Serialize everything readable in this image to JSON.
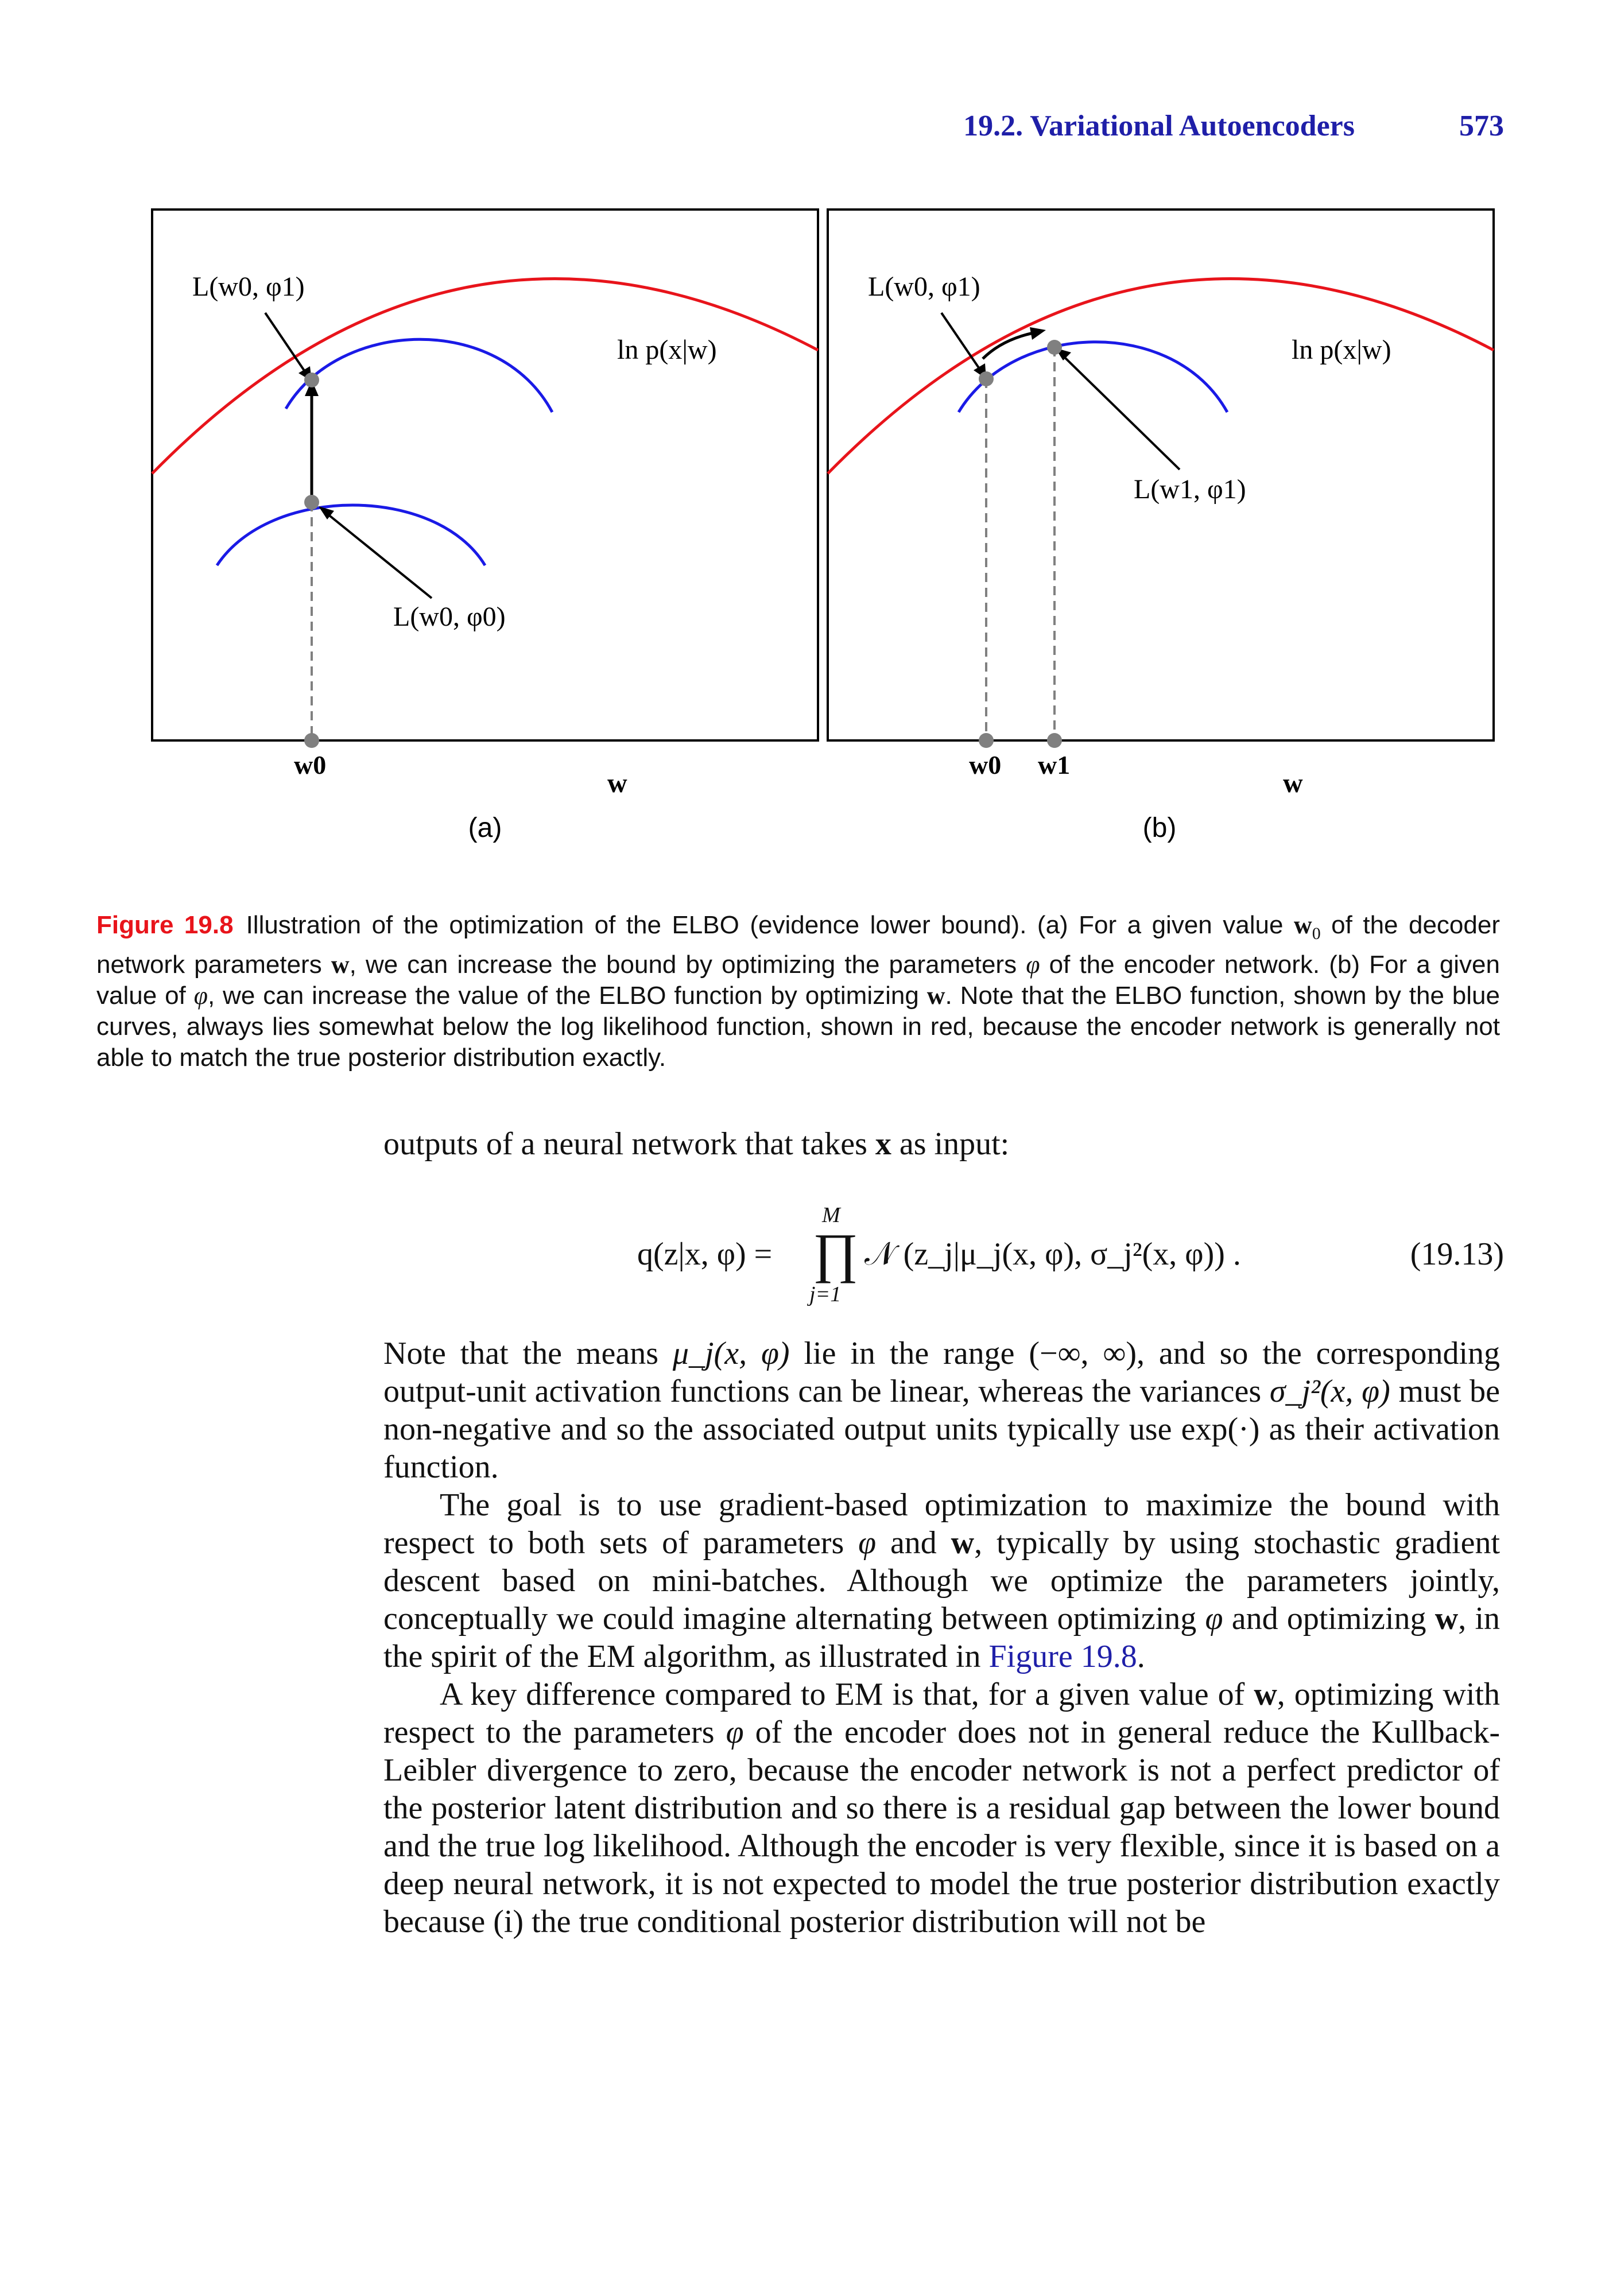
{
  "header": {
    "section_title": "19.2. Variational Autoencoders",
    "page_number": "573"
  },
  "figure": {
    "panel_a": {
      "label": "(a)",
      "curve_label": "ln p(x|w)",
      "point_top_label": "L(w0, φ1)",
      "point_bottom_label": "L(w0, φ0)",
      "tick_label": "w0",
      "axis_label": "w"
    },
    "panel_b": {
      "label": "(b)",
      "curve_label": "ln p(x|w)",
      "point_left_label": "L(w0, φ1)",
      "point_right_label": "L(w1, φ1)",
      "tick_labels": [
        "w0",
        "w1"
      ],
      "axis_label": "w"
    },
    "colors": {
      "log_likelihood": "#e8141b",
      "elbo": "#1a1ae6",
      "point": "#808080",
      "arrow": "#000000"
    }
  },
  "caption": {
    "label": "Figure 19.8",
    "parts": [
      "Illustration of the optimization of the ELBO (evidence lower bound). (a) For a given value ",
      "w",
      "0",
      " of the decoder network parameters ",
      "w",
      ", we can increase the bound by optimizing the parameters ",
      "φ",
      " of the encoder network. (b) For a given value of ",
      "φ",
      ", we can increase the value of the ELBO function by optimizing ",
      "w",
      ". Note that the ELBO function, shown by the blue curves, always lies somewhat below the log likelihood function, shown in red, because the encoder network is generally not able to match the true posterior distribution exactly."
    ]
  },
  "body": {
    "intro": "outputs of a neural network that takes ",
    "intro_x": "x",
    "intro_end": " as input:",
    "equation": {
      "lhs": "q(z|x, φ) =",
      "prod_upper": "M",
      "prod_symbol": "∏",
      "prod_lower": "j=1",
      "rhs": "𝒩 (z_j|μ_j(x, φ), σ_j²(x, φ)) .",
      "number": "(19.13)"
    },
    "p1": [
      "Note that the means ",
      "μ_j(x, φ)",
      " lie in the range ",
      "(−∞, ∞)",
      ", and so the corresponding output-unit activation functions can be linear, whereas the variances ",
      "σ_j²(x, φ)",
      " must be non-negative and so the associated output units typically use ",
      "exp(·)",
      " as their activation function."
    ],
    "p2": [
      "The goal is to use gradient-based optimization to maximize the bound with respect to both sets of parameters ",
      "φ",
      " and ",
      "w",
      ", typically by using stochastic gradient descent based on mini-batches. Although we optimize the parameters jointly, conceptually we could imagine alternating between optimizing ",
      "φ",
      " and optimizing ",
      "w",
      ", in the spirit of the EM algorithm, as illustrated in ",
      "Figure 19.8",
      "."
    ],
    "p3": [
      "A key difference compared to EM is that, for a given value of ",
      "w",
      ", optimizing with respect to the parameters ",
      "φ",
      " of the encoder does not in general reduce the Kullback-Leibler divergence to zero, because the encoder network is not a perfect predictor of the posterior latent distribution and so there is a residual gap between the lower bound and the true log likelihood.  Although the encoder is very flexible, since it is based on a deep neural network, it is not expected to model the true posterior distribution exactly because (i) the true conditional posterior distribution will not be"
    ]
  }
}
